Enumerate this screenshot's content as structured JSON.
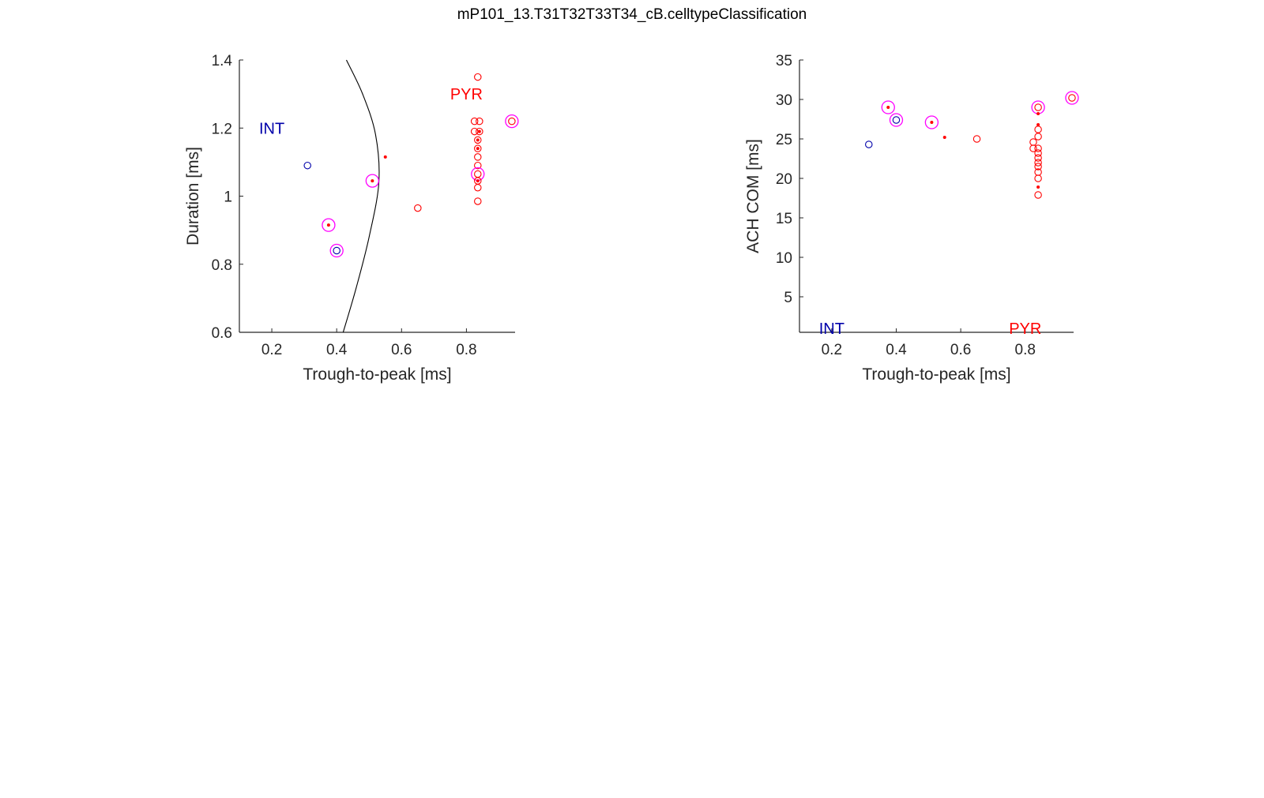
{
  "figure": {
    "title": "mP101_13.T31T32T33T34_cB.celltypeClassification"
  },
  "colors": {
    "int": "#0000aa",
    "pyr": "#ff0000",
    "highlight": "#ff00ff",
    "boundary": "#000000",
    "axis": "#262626"
  },
  "chart_data": [
    {
      "type": "scatter",
      "xlabel": "Trough-to-peak [ms]",
      "ylabel": "Duration [ms]",
      "xlim": [
        0.1,
        0.95
      ],
      "ylim": [
        0.6,
        1.4
      ],
      "xticks": [
        0.2,
        0.4,
        0.6,
        0.8
      ],
      "yticks": [
        0.6,
        0.8,
        1,
        1.2,
        1.4
      ],
      "annotations": [
        {
          "text": "INT",
          "x": 0.2,
          "y": 1.2,
          "color": "int"
        },
        {
          "text": "PYR",
          "x": 0.8,
          "y": 1.3,
          "color": "pyr"
        }
      ],
      "boundary": [
        [
          0.42,
          0.6
        ],
        [
          0.46,
          0.73
        ],
        [
          0.5,
          0.88
        ],
        [
          0.53,
          1.04
        ],
        [
          0.52,
          1.18
        ],
        [
          0.48,
          1.3
        ],
        [
          0.43,
          1.4
        ]
      ],
      "points": [
        {
          "x": 0.31,
          "y": 1.09,
          "cls": "int",
          "marker": "o"
        },
        {
          "x": 0.4,
          "y": 0.84,
          "cls": "int",
          "marker": "o",
          "highlight": true
        },
        {
          "x": 0.375,
          "y": 0.915,
          "cls": "pyr",
          "marker": "dot",
          "highlight": true
        },
        {
          "x": 0.51,
          "y": 1.045,
          "cls": "pyr",
          "marker": "dot",
          "highlight": true
        },
        {
          "x": 0.55,
          "y": 1.115,
          "cls": "pyr",
          "marker": "dot"
        },
        {
          "x": 0.65,
          "y": 0.965,
          "cls": "pyr",
          "marker": "o"
        },
        {
          "x": 0.94,
          "y": 1.22,
          "cls": "pyr",
          "marker": "o",
          "highlight": true
        },
        {
          "x": 0.835,
          "y": 1.35,
          "cls": "pyr",
          "marker": "o"
        },
        {
          "x": 0.825,
          "y": 1.22,
          "cls": "pyr",
          "marker": "o"
        },
        {
          "x": 0.84,
          "y": 1.22,
          "cls": "pyr",
          "marker": "o"
        },
        {
          "x": 0.825,
          "y": 1.19,
          "cls": "pyr",
          "marker": "o"
        },
        {
          "x": 0.84,
          "y": 1.19,
          "cls": "pyr",
          "marker": "o"
        },
        {
          "x": 0.835,
          "y": 1.165,
          "cls": "pyr",
          "marker": "o"
        },
        {
          "x": 0.835,
          "y": 1.14,
          "cls": "pyr",
          "marker": "o"
        },
        {
          "x": 0.835,
          "y": 1.115,
          "cls": "pyr",
          "marker": "o"
        },
        {
          "x": 0.835,
          "y": 1.09,
          "cls": "pyr",
          "marker": "o"
        },
        {
          "x": 0.835,
          "y": 1.065,
          "cls": "pyr",
          "marker": "o",
          "highlight": true
        },
        {
          "x": 0.835,
          "y": 1.045,
          "cls": "pyr",
          "marker": "o"
        },
        {
          "x": 0.835,
          "y": 1.025,
          "cls": "pyr",
          "marker": "o"
        },
        {
          "x": 0.835,
          "y": 0.985,
          "cls": "pyr",
          "marker": "o"
        },
        {
          "x": 0.84,
          "y": 1.19,
          "cls": "pyr",
          "marker": "dot"
        },
        {
          "x": 0.835,
          "y": 1.165,
          "cls": "pyr",
          "marker": "dot"
        },
        {
          "x": 0.835,
          "y": 1.14,
          "cls": "pyr",
          "marker": "dot"
        },
        {
          "x": 0.835,
          "y": 1.045,
          "cls": "pyr",
          "marker": "dot"
        }
      ]
    },
    {
      "type": "scatter",
      "xlabel": "Trough-to-peak [ms]",
      "ylabel": "ACH COM [ms]",
      "xlim": [
        0.1,
        0.95
      ],
      "ylim": [
        0.5,
        35
      ],
      "xticks": [
        0.2,
        0.4,
        0.6,
        0.8
      ],
      "yticks": [
        5,
        10,
        15,
        20,
        25,
        30,
        35
      ],
      "annotations": [
        {
          "text": "INT",
          "x": 0.2,
          "y": 1,
          "color": "int"
        },
        {
          "text": "PYR",
          "x": 0.8,
          "y": 1,
          "color": "pyr"
        }
      ],
      "points": [
        {
          "x": 0.315,
          "y": 24.3,
          "cls": "int",
          "marker": "o"
        },
        {
          "x": 0.4,
          "y": 27.4,
          "cls": "int",
          "marker": "o",
          "highlight": true
        },
        {
          "x": 0.375,
          "y": 29.0,
          "cls": "pyr",
          "marker": "dot",
          "highlight": true
        },
        {
          "x": 0.51,
          "y": 27.1,
          "cls": "pyr",
          "marker": "dot",
          "highlight": true
        },
        {
          "x": 0.55,
          "y": 25.2,
          "cls": "pyr",
          "marker": "dot"
        },
        {
          "x": 0.65,
          "y": 25.0,
          "cls": "pyr",
          "marker": "o"
        },
        {
          "x": 0.945,
          "y": 30.2,
          "cls": "pyr",
          "marker": "o",
          "highlight": true
        },
        {
          "x": 0.84,
          "y": 29.0,
          "cls": "pyr",
          "marker": "o",
          "highlight": true
        },
        {
          "x": 0.84,
          "y": 28.2,
          "cls": "pyr",
          "marker": "dot"
        },
        {
          "x": 0.84,
          "y": 26.8,
          "cls": "pyr",
          "marker": "dot"
        },
        {
          "x": 0.84,
          "y": 26.2,
          "cls": "pyr",
          "marker": "o"
        },
        {
          "x": 0.84,
          "y": 25.3,
          "cls": "pyr",
          "marker": "o"
        },
        {
          "x": 0.825,
          "y": 24.6,
          "cls": "pyr",
          "marker": "o"
        },
        {
          "x": 0.825,
          "y": 23.8,
          "cls": "pyr",
          "marker": "o"
        },
        {
          "x": 0.84,
          "y": 23.8,
          "cls": "pyr",
          "marker": "o"
        },
        {
          "x": 0.84,
          "y": 23.2,
          "cls": "pyr",
          "marker": "o"
        },
        {
          "x": 0.84,
          "y": 22.6,
          "cls": "pyr",
          "marker": "o"
        },
        {
          "x": 0.84,
          "y": 22.0,
          "cls": "pyr",
          "marker": "o"
        },
        {
          "x": 0.84,
          "y": 21.5,
          "cls": "pyr",
          "marker": "o"
        },
        {
          "x": 0.84,
          "y": 20.8,
          "cls": "pyr",
          "marker": "o"
        },
        {
          "x": 0.84,
          "y": 20.0,
          "cls": "pyr",
          "marker": "o"
        },
        {
          "x": 0.84,
          "y": 18.9,
          "cls": "pyr",
          "marker": "dot"
        },
        {
          "x": 0.84,
          "y": 17.9,
          "cls": "pyr",
          "marker": "o"
        }
      ]
    }
  ]
}
